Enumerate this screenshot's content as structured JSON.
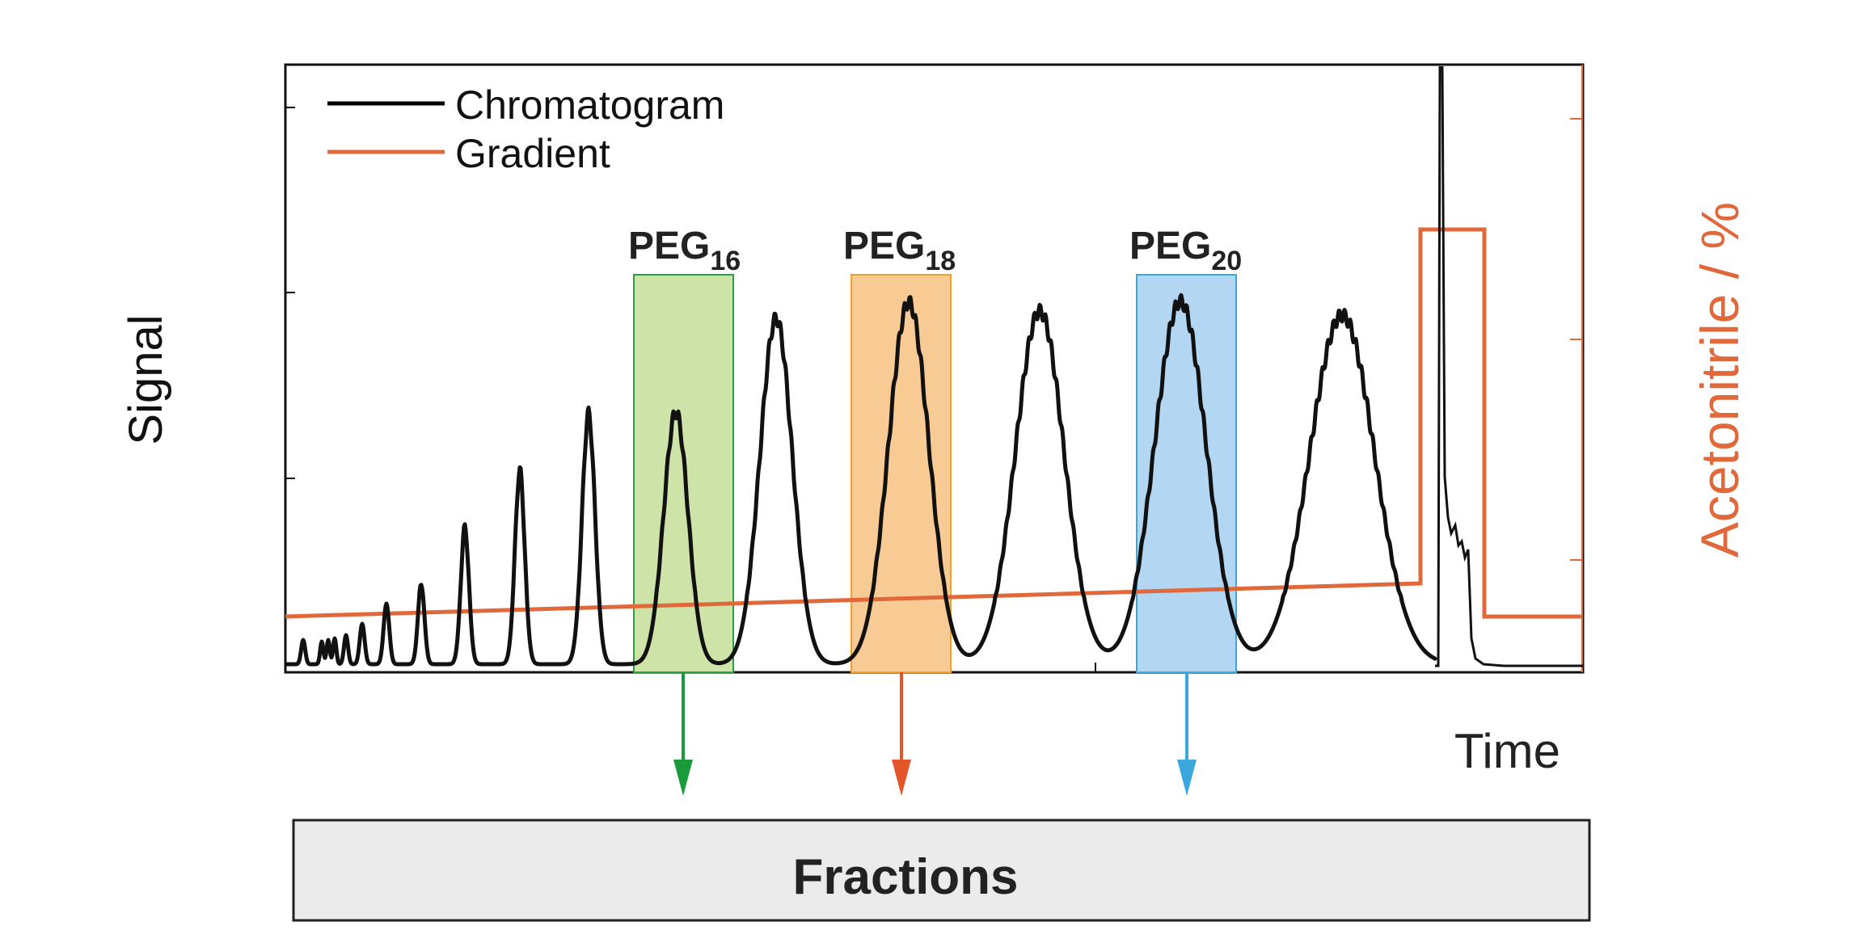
{
  "legend": {
    "items": [
      {
        "label": "Chromatogram",
        "color": "#000000"
      },
      {
        "label": "Gradient",
        "color": "#e0683a"
      }
    ]
  },
  "axes": {
    "y_left_label": "Signal",
    "y_right_label": "Acetonitrile / %",
    "x_label": "Time"
  },
  "fractions": [
    {
      "base": "PEG",
      "subscript": "16",
      "fill": "#cde3a8",
      "stroke": "#2e9e3e",
      "arrow_color": "#1a9a3a"
    },
    {
      "base": "PEG",
      "subscript": "18",
      "fill": "#f9cb94",
      "stroke": "#f0a030",
      "arrow_color": "#e4552a"
    },
    {
      "base": "PEG",
      "subscript": "20",
      "fill": "#b3d6f2",
      "stroke": "#3aa8dc",
      "arrow_color": "#3aa8dc"
    }
  ],
  "fractions_box": {
    "label": "Fractions",
    "fill": "#ebebeb"
  },
  "colors": {
    "chromatogram": "#111111",
    "gradient": "#e0683a",
    "frame": "#111111",
    "right_axis_text": "#e0683a"
  }
}
